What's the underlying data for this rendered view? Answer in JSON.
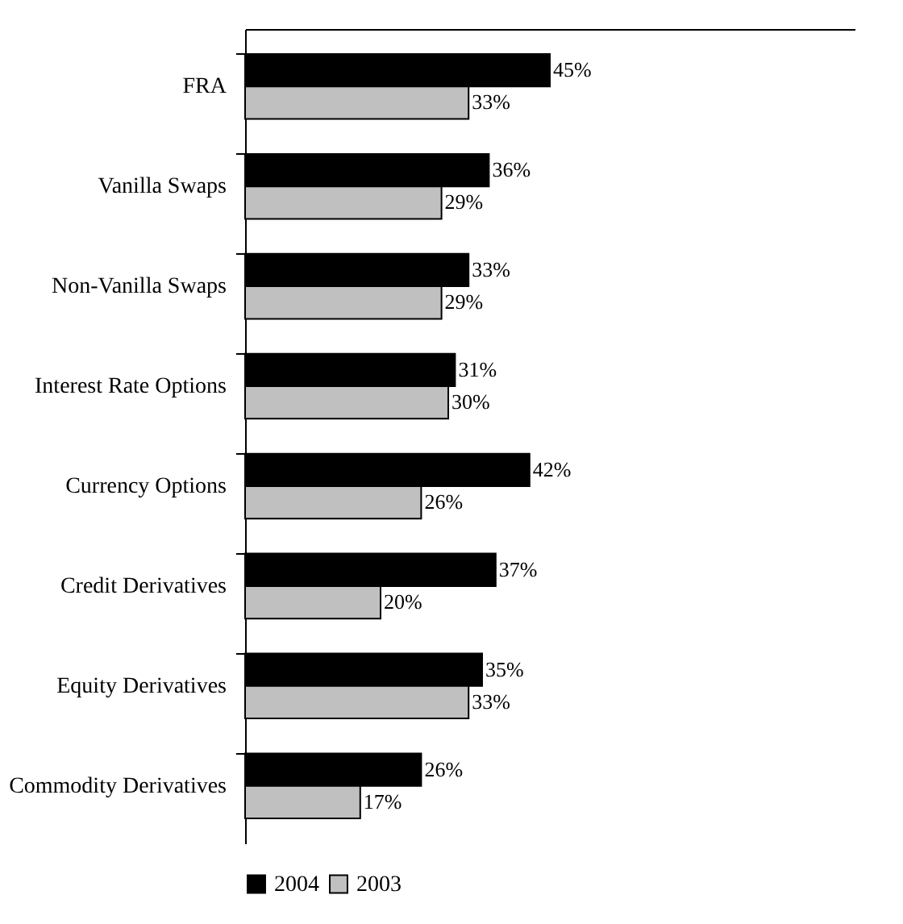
{
  "chart_data": {
    "type": "bar",
    "orientation": "horizontal",
    "categories": [
      "FRA",
      "Vanilla Swaps",
      "Non-Vanilla Swaps",
      "Interest Rate Options",
      "Currency Options",
      "Credit Derivatives",
      "Equity Derivatives",
      "Commodity Derivatives"
    ],
    "series": [
      {
        "name": "2004",
        "color": "#000000",
        "values": [
          45,
          36,
          33,
          31,
          42,
          37,
          35,
          26
        ],
        "value_labels": [
          "45%",
          "36%",
          "33%",
          "31%",
          "42%",
          "37%",
          "35%",
          "26%"
        ]
      },
      {
        "name": "2003",
        "color": "#c0c0c0",
        "values": [
          33,
          29,
          29,
          30,
          26,
          20,
          33,
          17
        ],
        "value_labels": [
          "33%",
          "29%",
          "29%",
          "30%",
          "26%",
          "20%",
          "33%",
          "17%"
        ]
      }
    ],
    "xlim": [
      0,
      90
    ],
    "tick_labels": "y",
    "legend": "bottom",
    "grid": false
  }
}
